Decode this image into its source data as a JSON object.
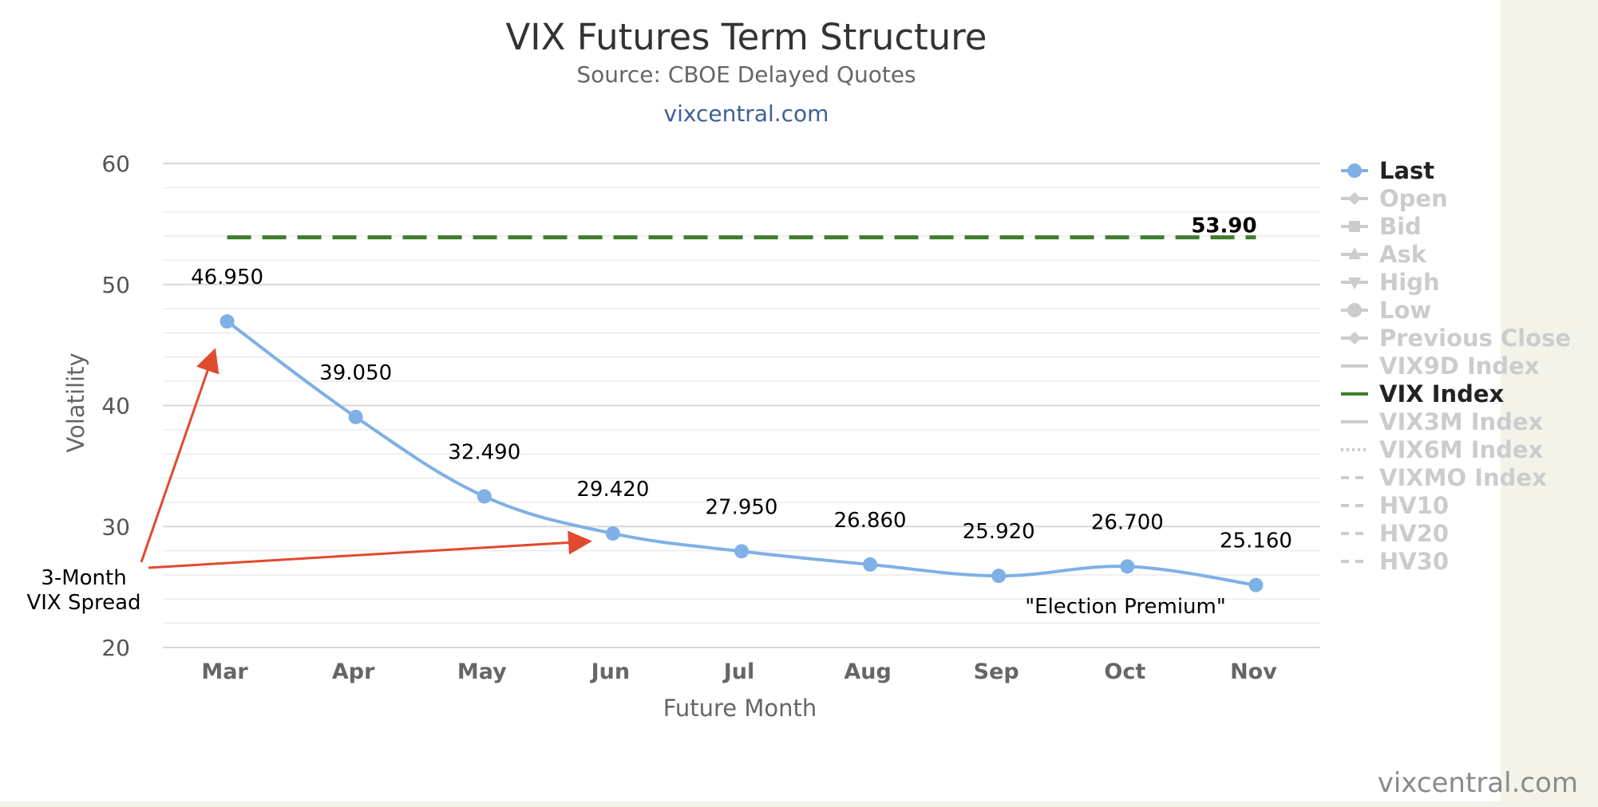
{
  "chart_data": {
    "type": "line",
    "title": "VIX Futures Term Structure",
    "subtitle": "Source: CBOE Delayed Quotes",
    "credit": "vixcentral.com",
    "xlabel": "Future Month",
    "ylabel": "Volatility",
    "ylim": [
      20,
      60
    ],
    "yticks": [
      20,
      30,
      40,
      50,
      60
    ],
    "categories": [
      "Mar",
      "Apr",
      "May",
      "Jun",
      "Jul",
      "Aug",
      "Sep",
      "Oct",
      "Nov"
    ],
    "grid": true,
    "legend_position": "right",
    "series": [
      {
        "name": "Last",
        "values": [
          46.95,
          39.05,
          32.49,
          29.42,
          27.95,
          26.86,
          25.92,
          26.7,
          25.16
        ],
        "labels": [
          "46.950",
          "39.050",
          "32.490",
          "29.420",
          "27.950",
          "26.860",
          "25.920",
          "26.700",
          "25.160"
        ],
        "color": "#7fb0e6",
        "marker": "circle",
        "smooth": true,
        "visible": true
      },
      {
        "name": "VIX Index",
        "value": 53.9,
        "label": "53.90",
        "color": "#3e7d2b",
        "dash": true,
        "visible": true
      }
    ],
    "legend": [
      {
        "name": "Last",
        "symbol": "circle",
        "active": true,
        "color": "#7fb0e6"
      },
      {
        "name": "Open",
        "symbol": "diamond",
        "active": false
      },
      {
        "name": "Bid",
        "symbol": "square",
        "active": false
      },
      {
        "name": "Ask",
        "symbol": "triangle",
        "active": false
      },
      {
        "name": "High",
        "symbol": "triangle-down",
        "active": false
      },
      {
        "name": "Low",
        "symbol": "circle",
        "active": false
      },
      {
        "name": "Previous Close",
        "symbol": "diamond",
        "active": false
      },
      {
        "name": "VIX9D Index",
        "symbol": "line",
        "active": false
      },
      {
        "name": "VIX Index",
        "symbol": "line",
        "active": true,
        "color": "#3e7d2b"
      },
      {
        "name": "VIX3M Index",
        "symbol": "line",
        "active": false
      },
      {
        "name": "VIX6M Index",
        "symbol": "dotted",
        "active": false
      },
      {
        "name": "VIXMO Index",
        "symbol": "dashed",
        "active": false
      },
      {
        "name": "HV10",
        "symbol": "dashed",
        "active": false
      },
      {
        "name": "HV20",
        "symbol": "dashed",
        "active": false
      },
      {
        "name": "HV30",
        "symbol": "dashed",
        "active": false
      }
    ],
    "annotations": [
      {
        "text_lines": [
          "3-Month",
          "VIX Spread"
        ],
        "color": "#e04a2f"
      },
      {
        "text": "\"Election Premium\""
      }
    ]
  },
  "watermark": "vixcentral.com",
  "colors": {
    "background": "#f4f3ea",
    "plot_background": "#ffffff",
    "grid": "#e3e3e3",
    "text_dark": "#333333",
    "text_muted": "#666666",
    "legend_inactive": "#cccccc",
    "credit": "#3e5f95",
    "arrow": "#e04a2f"
  }
}
